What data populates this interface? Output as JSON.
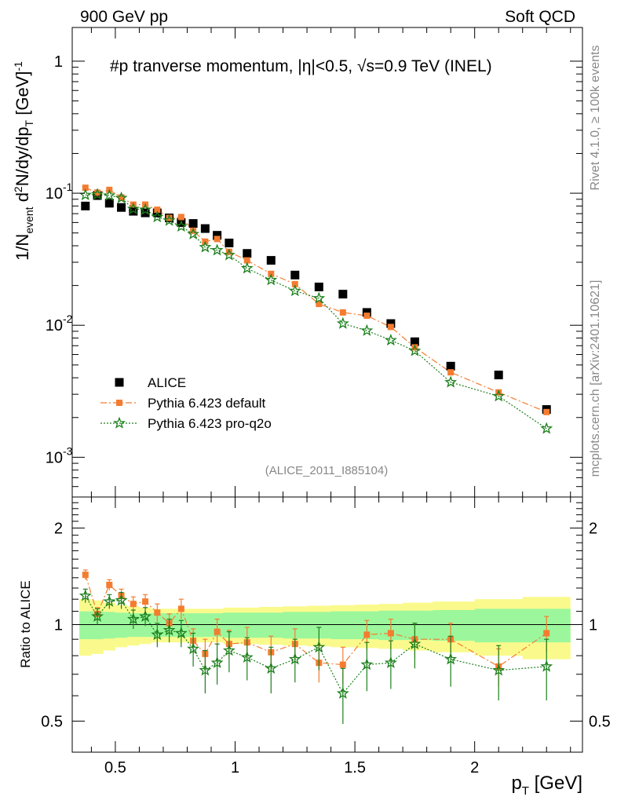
{
  "header": {
    "left": "900 GeV pp",
    "right": "Soft QCD"
  },
  "side_labels": {
    "rivet": "Rivet 4.1.0, ≥ 100k events",
    "mcplots": "mcplots.cern.ch [arXiv:2401.10621]"
  },
  "chart_data": {
    "type": "scatter",
    "title_parts": {
      "pbar": "#p",
      "main": " tranverse momentum, ",
      "eta": "|η|<0.5, ",
      "sqrt": "√",
      "energy": "s=0.9 TeV (INEL)"
    },
    "analysis_id": "(ALICE_2011_I885104)",
    "xlabel": "p",
    "xlabel_sub": "T",
    "xlabel_unit": "[GeV]",
    "ylabel_ratio": "Ratio to ALICE",
    "x_ticks": [
      "0.5",
      "1",
      "1.5",
      "2"
    ],
    "y_ticks_main": [
      "1",
      "10",
      "10",
      "10"
    ],
    "y_tick_exponents": [
      "",
      "-1",
      "-2",
      "-3"
    ],
    "y_ticks_ratio": [
      "2",
      "1",
      "0.5"
    ],
    "xlim": [
      0.32,
      2.45
    ],
    "ylim_main": [
      0.0005,
      1.8
    ],
    "ylim_ratio": [
      0.4,
      2.5
    ],
    "pt": [
      0.375,
      0.425,
      0.475,
      0.525,
      0.575,
      0.625,
      0.675,
      0.725,
      0.775,
      0.825,
      0.875,
      0.925,
      0.975,
      1.05,
      1.15,
      1.25,
      1.35,
      1.45,
      1.55,
      1.65,
      1.75,
      1.9,
      2.1,
      2.3
    ],
    "series": [
      {
        "name": "ALICE",
        "marker": "square",
        "color": "#000000",
        "values": [
          0.08,
          0.096,
          0.084,
          0.078,
          0.073,
          0.071,
          0.071,
          0.065,
          0.06,
          0.059,
          0.054,
          0.048,
          0.042,
          0.035,
          0.031,
          0.024,
          0.0195,
          0.0172,
          0.0125,
          0.0103,
          0.0075,
          0.0049,
          0.0042,
          0.0023
        ]
      },
      {
        "name": "Pythia 6.423 default",
        "marker": "square-small",
        "color": "#f47c30",
        "values": [
          0.11,
          0.101,
          0.106,
          0.093,
          0.082,
          0.082,
          0.075,
          0.065,
          0.066,
          0.052,
          0.043,
          0.045,
          0.036,
          0.031,
          0.0245,
          0.0205,
          0.0145,
          0.0125,
          0.0118,
          0.0097,
          0.0068,
          0.0044,
          0.0031,
          0.0022
        ]
      },
      {
        "name": "Pythia 6.423 pro-q2o",
        "marker": "star",
        "color": "#1b7f1b",
        "values": [
          0.097,
          0.098,
          0.096,
          0.092,
          0.076,
          0.075,
          0.066,
          0.062,
          0.056,
          0.049,
          0.039,
          0.037,
          0.034,
          0.027,
          0.022,
          0.0182,
          0.016,
          0.0103,
          0.0091,
          0.0077,
          0.0064,
          0.0037,
          0.0029,
          0.00165
        ]
      }
    ],
    "ratio_default": [
      1.43,
      1.08,
      1.33,
      1.23,
      1.16,
      1.18,
      1.09,
      1.01,
      1.12,
      0.89,
      0.81,
      0.95,
      0.87,
      0.88,
      0.82,
      0.87,
      0.76,
      0.75,
      0.93,
      0.94,
      0.9,
      0.9,
      0.74,
      0.94
    ],
    "ratio_default_err": [
      0.05,
      0.05,
      0.05,
      0.06,
      0.06,
      0.06,
      0.07,
      0.07,
      0.08,
      0.08,
      0.09,
      0.09,
      0.09,
      0.1,
      0.1,
      0.1,
      0.1,
      0.1,
      0.1,
      0.1,
      0.11,
      0.11,
      0.1,
      0.12
    ],
    "ratio_proq2o": [
      1.23,
      1.06,
      1.18,
      1.19,
      1.04,
      1.06,
      0.93,
      0.96,
      0.94,
      0.84,
      0.72,
      0.76,
      0.83,
      0.79,
      0.73,
      0.78,
      0.85,
      0.61,
      0.75,
      0.76,
      0.87,
      0.78,
      0.72,
      0.74
    ],
    "ratio_proq2o_err": [
      0.06,
      0.06,
      0.06,
      0.07,
      0.07,
      0.07,
      0.08,
      0.08,
      0.09,
      0.1,
      0.11,
      0.11,
      0.12,
      0.12,
      0.12,
      0.12,
      0.13,
      0.12,
      0.13,
      0.13,
      0.14,
      0.14,
      0.14,
      0.16
    ],
    "band_inner": [
      0.1,
      0.1,
      0.095,
      0.09,
      0.085,
      0.085,
      0.085,
      0.085,
      0.085,
      0.085,
      0.085,
      0.085,
      0.09,
      0.09,
      0.09,
      0.095,
      0.095,
      0.1,
      0.1,
      0.105,
      0.105,
      0.11,
      0.12,
      0.12
    ],
    "band_outer": [
      0.2,
      0.19,
      0.17,
      0.15,
      0.14,
      0.13,
      0.12,
      0.12,
      0.12,
      0.12,
      0.12,
      0.12,
      0.13,
      0.13,
      0.135,
      0.14,
      0.145,
      0.15,
      0.155,
      0.16,
      0.17,
      0.18,
      0.2,
      0.22
    ],
    "band_colors": {
      "inner": "#9cf79c",
      "outer": "#fafa8c"
    }
  }
}
